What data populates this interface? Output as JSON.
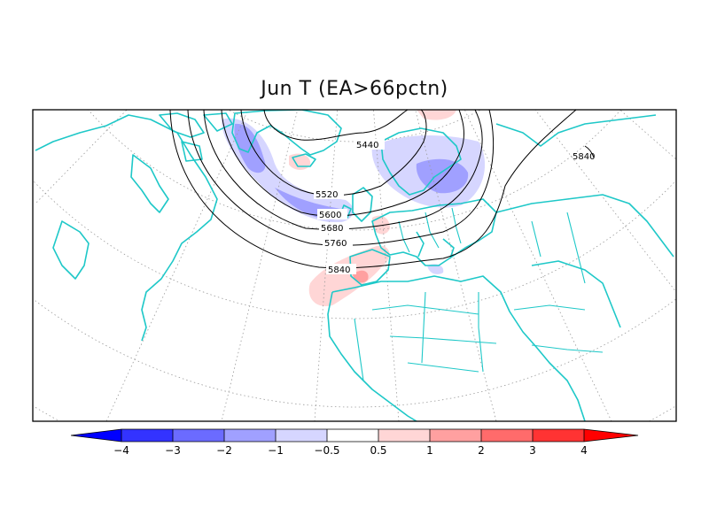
{
  "title": "Jun T (EA>66pctn)",
  "contour_labels": [
    "5440",
    "5520",
    "5600",
    "5680",
    "5760",
    "5840",
    "5840"
  ],
  "colorbar": {
    "tick_labels": [
      "−4",
      "−3",
      "−2",
      "−1",
      "−0.5",
      "0.5",
      "1",
      "2",
      "3",
      "4"
    ],
    "colors": [
      "#0000ff",
      "#3333ff",
      "#6b6bff",
      "#a0a0ff",
      "#d6d6ff",
      "#ffffff",
      "#ffd6d6",
      "#ffa0a0",
      "#ff6b6b",
      "#ff3333",
      "#ff0000"
    ]
  },
  "colors": {
    "coastline": "#1ec8c8",
    "contour": "#000000",
    "grid": "#9a9a9a"
  }
}
